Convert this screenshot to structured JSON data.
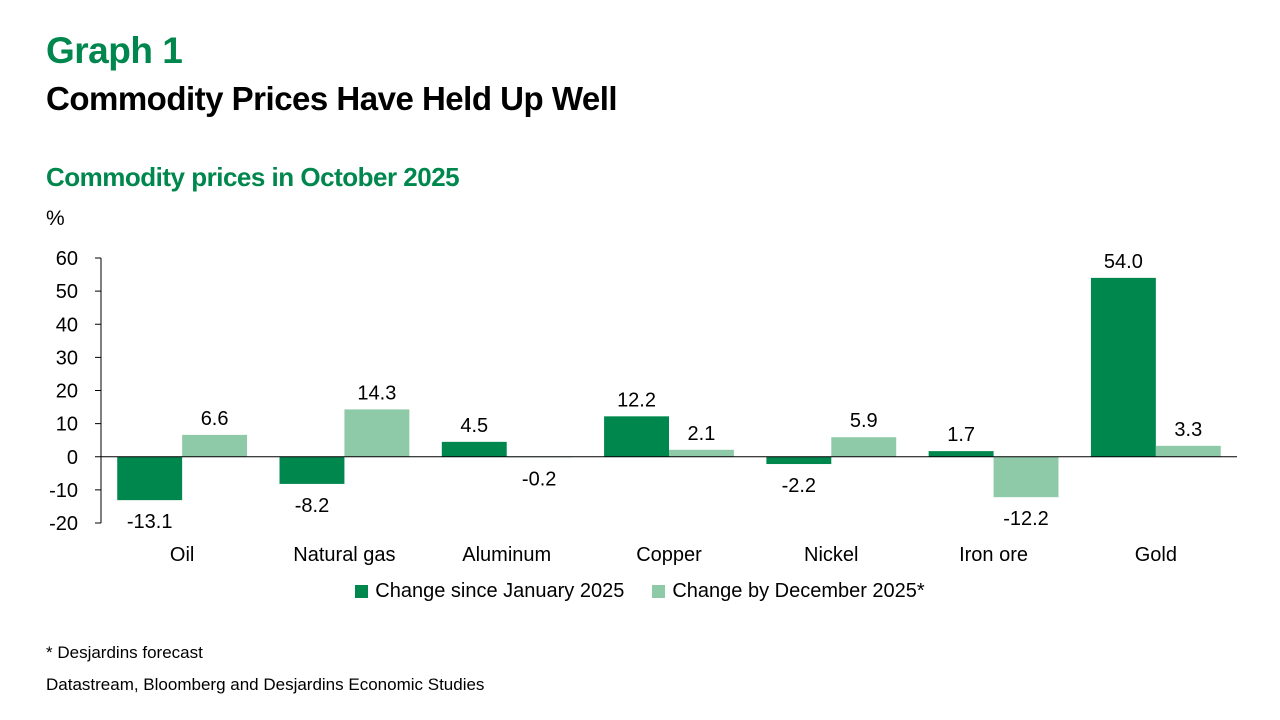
{
  "header": {
    "graph_number": "Graph 1",
    "title": "Commodity Prices Have Held Up Well",
    "subtitle": "Commodity prices in October 2025",
    "unit": "%"
  },
  "footer": {
    "note": "* Desjardins forecast",
    "source": "Datastream, Bloomberg and Desjardins Economic Studies"
  },
  "colors": {
    "series_dark": "#00874e",
    "series_light": "#8fcaa8",
    "axis": "#000000"
  },
  "chart_data": {
    "type": "bar",
    "title": "Commodity prices in October 2025",
    "xlabel": "",
    "ylabel": "%",
    "ylim": [
      -20,
      60
    ],
    "yticks": [
      -20,
      -10,
      0,
      10,
      20,
      30,
      40,
      50,
      60
    ],
    "grid": false,
    "legend_position": "bottom",
    "categories": [
      "Oil",
      "Natural gas",
      "Aluminum",
      "Copper",
      "Nickel",
      "Iron ore",
      "Gold"
    ],
    "series": [
      {
        "name": "Change since January 2025",
        "values": [
          -13.1,
          -8.2,
          4.5,
          12.2,
          -2.2,
          1.7,
          54.0
        ],
        "labels": [
          "-13.1",
          "-8.2",
          "4.5",
          "12.2",
          "-2.2",
          "1.7",
          "54.0"
        ]
      },
      {
        "name": "Change by December 2025*",
        "values": [
          6.6,
          14.3,
          -0.2,
          2.1,
          5.9,
          -12.2,
          3.3
        ],
        "labels": [
          "6.6",
          "14.3",
          "-0.2",
          "2.1",
          "5.9",
          "-12.2",
          "3.3"
        ]
      }
    ]
  }
}
